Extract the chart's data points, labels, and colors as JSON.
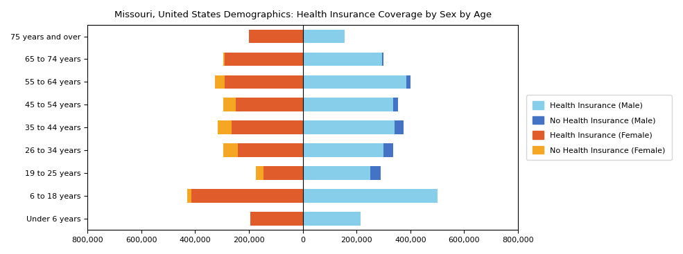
{
  "title": "Missouri, United States Demographics: Health Insurance Coverage by Sex by Age",
  "age_groups": [
    "Under 6 years",
    "6 to 18 years",
    "19 to 25 years",
    "26 to 34 years",
    "35 to 44 years",
    "45 to 54 years",
    "55 to 64 years",
    "65 to 74 years",
    "75 years and over"
  ],
  "health_ins_male": [
    215000,
    500000,
    250000,
    300000,
    340000,
    335000,
    385000,
    295000,
    155000
  ],
  "no_health_ins_male": [
    0,
    0,
    40000,
    35000,
    35000,
    20000,
    15000,
    5000,
    0
  ],
  "health_ins_female": [
    195000,
    415000,
    145000,
    240000,
    265000,
    250000,
    290000,
    290000,
    200000
  ],
  "no_health_ins_female": [
    0,
    15000,
    30000,
    55000,
    50000,
    45000,
    35000,
    5000,
    0
  ],
  "colors": {
    "health_ins_male": "#87CEEB",
    "no_health_ins_male": "#4472C4",
    "health_ins_female": "#E05C2A",
    "no_health_ins_female": "#F5A623"
  },
  "xlim": [
    -800000,
    800000
  ],
  "xticks": [
    -800000,
    -600000,
    -400000,
    -200000,
    0,
    200000,
    400000,
    600000,
    800000
  ],
  "xticklabels": [
    "800,000",
    "600,000",
    "400,000",
    "200,000",
    "0",
    "200,000",
    "400,000",
    "600,000",
    "800,000"
  ],
  "legend_labels": [
    "Health Insurance (Male)",
    "No Health Insurance (Male)",
    "Health Insurance (Female)",
    "No Health Insurance (Female)"
  ],
  "legend_colors": [
    "#87CEEB",
    "#4472C4",
    "#E05C2A",
    "#F5A623"
  ]
}
